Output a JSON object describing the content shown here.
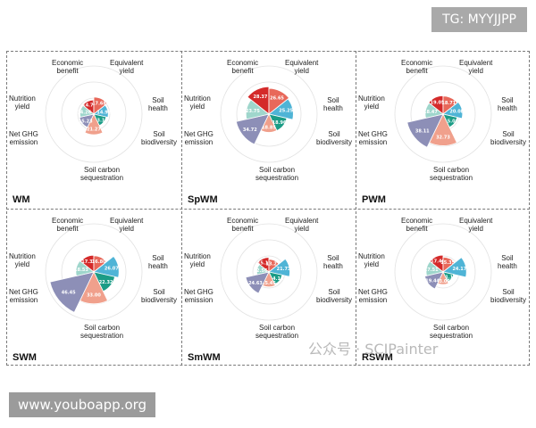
{
  "overlay": {
    "tg_badge": "TG: MYYJJPP",
    "site_badge": "www.youboapp.org",
    "watermark": "公众号 · SCIPainter"
  },
  "axes_labels": {
    "economic": "Economic\nbenefit",
    "equivalent": "Equivalent\nyield",
    "soil_health": "Soil\nhealth",
    "soil_biodiversity": "Soil\nbiodiversity",
    "soil_carbon": "Soil carbon\nsequestration",
    "net_ghg": "Net GHG\nemission",
    "nutrition": "Nutrition\nyield"
  },
  "colors": [
    "#d42a2a",
    "#e8685a",
    "#4fb4d6",
    "#1b9c86",
    "#f0a08c",
    "#8d8fb7",
    "#9fd6cc"
  ],
  "chart_data": [
    {
      "type": "pie",
      "title": "WM",
      "categories": [
        "Economic benefit",
        "Equivalent yield",
        "Soil health",
        "Soil biodiversity",
        "Soil carbon sequestration",
        "Net GHG emission",
        "Nutrition yield"
      ],
      "values": [
        14.71,
        17.68,
        14.92,
        13.12,
        21.27,
        15.23,
        14.26
      ]
    },
    {
      "type": "pie",
      "title": "SpWM",
      "categories": [
        "Economic benefit",
        "Equivalent yield",
        "Soil health",
        "Soil biodiversity",
        "Soil carbon sequestration",
        "Net GHG emission",
        "Nutrition yield"
      ],
      "values": [
        28.37,
        26.65,
        25.25,
        18.96,
        18.85,
        34.72,
        23.75
      ]
    },
    {
      "type": "pie",
      "title": "PWM",
      "categories": [
        "Economic benefit",
        "Equivalent yield",
        "Soil health",
        "Soil biodiversity",
        "Soil carbon sequestration",
        "Net GHG emission",
        "Nutrition yield"
      ],
      "values": [
        19.05,
        18.71,
        20.08,
        15.02,
        32.73,
        38.11,
        18.47
      ]
    },
    {
      "type": "pie",
      "title": "SWM",
      "categories": [
        "Economic benefit",
        "Equivalent yield",
        "Soil health",
        "Soil biodiversity",
        "Soil carbon sequestration",
        "Net GHG emission",
        "Nutrition yield"
      ],
      "values": [
        17.33,
        16.8,
        26.07,
        22.32,
        33.0,
        46.45,
        18.53
      ]
    },
    {
      "type": "pie",
      "title": "SmWM",
      "categories": [
        "Economic benefit",
        "Equivalent yield",
        "Soil health",
        "Soil biodiversity",
        "Soil carbon sequestration",
        "Net GHG emission",
        "Nutrition yield"
      ],
      "values": [
        15.15,
        13.22,
        21.73,
        14.15,
        15.45,
        24.63,
        12.56
      ]
    },
    {
      "type": "pie",
      "title": "RSWM",
      "categories": [
        "Economic benefit",
        "Equivalent yield",
        "Soil health",
        "Soil biodiversity",
        "Soil carbon sequestration",
        "Net GHG emission",
        "Nutrition yield"
      ],
      "values": [
        17.46,
        15.35,
        24.17,
        11.16,
        13.05,
        19.44,
        17.51
      ]
    }
  ]
}
